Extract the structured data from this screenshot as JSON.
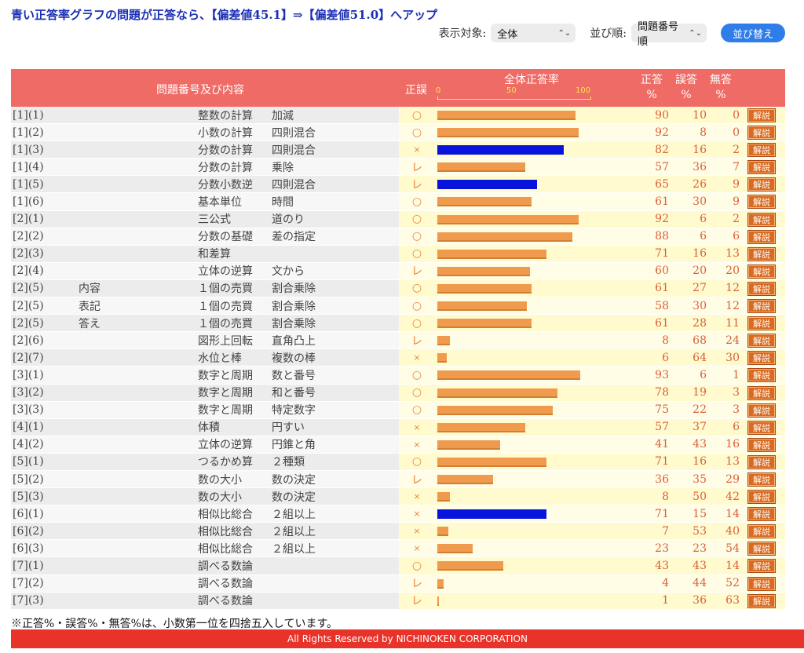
{
  "headline": "青い正答率グラフの問題が正答なら、【偏差値45.1】⇒【偏差値51.0】へアップ",
  "controls": {
    "target_label": "表示対象:",
    "target_value": "全体",
    "order_label": "並び順:",
    "order_value": "問題番号順",
    "sort_button": "並び替え"
  },
  "table": {
    "header": {
      "content": "問題番号及び内容",
      "judge": "正誤",
      "rate": "全体正答率",
      "scale_ticks": [
        "0",
        "50",
        "100"
      ],
      "correct": "正答",
      "wrong": "誤答",
      "none": "無答",
      "percent": "%"
    },
    "explain_label": "解説",
    "rows": [
      {
        "num": "[1](1)",
        "sub": "",
        "topic": "整数の計算",
        "detail": "加減",
        "judge": "○",
        "correct": 90,
        "wrong": 10,
        "none": 0,
        "blue": false
      },
      {
        "num": "[1](2)",
        "sub": "",
        "topic": "小数の計算",
        "detail": "四則混合",
        "judge": "○",
        "correct": 92,
        "wrong": 8,
        "none": 0,
        "blue": false
      },
      {
        "num": "[1](3)",
        "sub": "",
        "topic": "分数の計算",
        "detail": "四則混合",
        "judge": "×",
        "correct": 82,
        "wrong": 16,
        "none": 2,
        "blue": true
      },
      {
        "num": "[1](4)",
        "sub": "",
        "topic": "分数の計算",
        "detail": "乗除",
        "judge": "レ",
        "correct": 57,
        "wrong": 36,
        "none": 7,
        "blue": false
      },
      {
        "num": "[1](5)",
        "sub": "",
        "topic": "分数小数逆",
        "detail": "四則混合",
        "judge": "レ",
        "correct": 65,
        "wrong": 26,
        "none": 9,
        "blue": true
      },
      {
        "num": "[1](6)",
        "sub": "",
        "topic": "基本単位",
        "detail": "時間",
        "judge": "○",
        "correct": 61,
        "wrong": 30,
        "none": 9,
        "blue": false
      },
      {
        "num": "[2](1)",
        "sub": "",
        "topic": "三公式",
        "detail": "道のり",
        "judge": "○",
        "correct": 92,
        "wrong": 6,
        "none": 2,
        "blue": false
      },
      {
        "num": "[2](2)",
        "sub": "",
        "topic": "分数の基礎",
        "detail": "差の指定",
        "judge": "○",
        "correct": 88,
        "wrong": 6,
        "none": 6,
        "blue": false
      },
      {
        "num": "[2](3)",
        "sub": "",
        "topic": "和差算",
        "detail": "",
        "judge": "○",
        "correct": 71,
        "wrong": 16,
        "none": 13,
        "blue": false
      },
      {
        "num": "[2](4)",
        "sub": "",
        "topic": "立体の逆算",
        "detail": "文から",
        "judge": "レ",
        "correct": 60,
        "wrong": 20,
        "none": 20,
        "blue": false
      },
      {
        "num": "[2](5)",
        "sub": "内容",
        "topic": "１個の売買",
        "detail": "割合乗除",
        "judge": "○",
        "correct": 61,
        "wrong": 27,
        "none": 12,
        "blue": false
      },
      {
        "num": "[2](5)",
        "sub": "表記",
        "topic": "１個の売買",
        "detail": "割合乗除",
        "judge": "○",
        "correct": 58,
        "wrong": 30,
        "none": 12,
        "blue": false
      },
      {
        "num": "[2](5)",
        "sub": "答え",
        "topic": "１個の売買",
        "detail": "割合乗除",
        "judge": "○",
        "correct": 61,
        "wrong": 28,
        "none": 11,
        "blue": false
      },
      {
        "num": "[2](6)",
        "sub": "",
        "topic": "図形上回転",
        "detail": "直角凸上",
        "judge": "レ",
        "correct": 8,
        "wrong": 68,
        "none": 24,
        "blue": false
      },
      {
        "num": "[2](7)",
        "sub": "",
        "topic": "水位と棒",
        "detail": "複数の棒",
        "judge": "×",
        "correct": 6,
        "wrong": 64,
        "none": 30,
        "blue": false
      },
      {
        "num": "[3](1)",
        "sub": "",
        "topic": "数字と周期",
        "detail": "数と番号",
        "judge": "○",
        "correct": 93,
        "wrong": 6,
        "none": 1,
        "blue": false
      },
      {
        "num": "[3](2)",
        "sub": "",
        "topic": "数字と周期",
        "detail": "和と番号",
        "judge": "○",
        "correct": 78,
        "wrong": 19,
        "none": 3,
        "blue": false
      },
      {
        "num": "[3](3)",
        "sub": "",
        "topic": "数字と周期",
        "detail": "特定数字",
        "judge": "○",
        "correct": 75,
        "wrong": 22,
        "none": 3,
        "blue": false
      },
      {
        "num": "[4](1)",
        "sub": "",
        "topic": "体積",
        "detail": "円すい",
        "judge": "×",
        "correct": 57,
        "wrong": 37,
        "none": 6,
        "blue": false
      },
      {
        "num": "[4](2)",
        "sub": "",
        "topic": "立体の逆算",
        "detail": "円錐と角",
        "judge": "×",
        "correct": 41,
        "wrong": 43,
        "none": 16,
        "blue": false
      },
      {
        "num": "[5](1)",
        "sub": "",
        "topic": "つるかめ算",
        "detail": "２種類",
        "judge": "○",
        "correct": 71,
        "wrong": 16,
        "none": 13,
        "blue": false
      },
      {
        "num": "[5](2)",
        "sub": "",
        "topic": "数の大小",
        "detail": "数の決定",
        "judge": "レ",
        "correct": 36,
        "wrong": 35,
        "none": 29,
        "blue": false
      },
      {
        "num": "[5](3)",
        "sub": "",
        "topic": "数の大小",
        "detail": "数の決定",
        "judge": "×",
        "correct": 8,
        "wrong": 50,
        "none": 42,
        "blue": false
      },
      {
        "num": "[6](1)",
        "sub": "",
        "topic": "相似比総合",
        "detail": "２組以上",
        "judge": "×",
        "correct": 71,
        "wrong": 15,
        "none": 14,
        "blue": true
      },
      {
        "num": "[6](2)",
        "sub": "",
        "topic": "相似比総合",
        "detail": "２組以上",
        "judge": "×",
        "correct": 7,
        "wrong": 53,
        "none": 40,
        "blue": false
      },
      {
        "num": "[6](3)",
        "sub": "",
        "topic": "相似比総合",
        "detail": "２組以上",
        "judge": "×",
        "correct": 23,
        "wrong": 23,
        "none": 54,
        "blue": false
      },
      {
        "num": "[7](1)",
        "sub": "",
        "topic": "調べる数論",
        "detail": "",
        "judge": "○",
        "correct": 43,
        "wrong": 43,
        "none": 14,
        "blue": false
      },
      {
        "num": "[7](2)",
        "sub": "",
        "topic": "調べる数論",
        "detail": "",
        "judge": "レ",
        "correct": 4,
        "wrong": 44,
        "none": 52,
        "blue": false
      },
      {
        "num": "[7](3)",
        "sub": "",
        "topic": "調べる数論",
        "detail": "",
        "judge": "レ",
        "correct": 1,
        "wrong": 36,
        "none": 63,
        "blue": false
      }
    ]
  },
  "colors": {
    "header_bg": "#ee6b66",
    "bar_orange": "#ef9a4c",
    "bar_blue": "#0814dc",
    "headline": "#1a2fb5",
    "footer_bg": "#e8332a"
  },
  "footnote": "※正答%・誤答%・無答%は、小数第一位を四捨五入しています。",
  "footer": "All Rights Reserved by NICHINOKEN CORPORATION"
}
